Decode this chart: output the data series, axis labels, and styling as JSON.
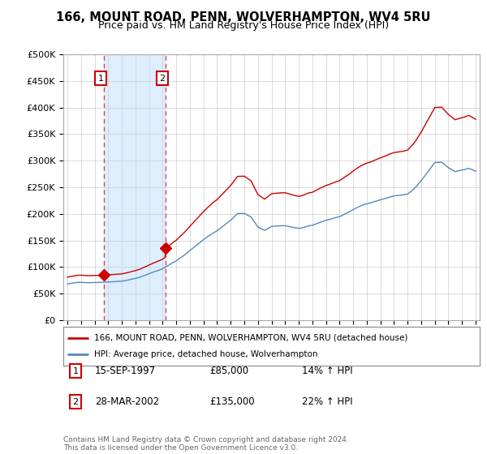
{
  "title": "166, MOUNT ROAD, PENN, WOLVERHAMPTON, WV4 5RU",
  "subtitle": "Price paid vs. HM Land Registry's House Price Index (HPI)",
  "legend_line1": "166, MOUNT ROAD, PENN, WOLVERHAMPTON, WV4 5RU (detached house)",
  "legend_line2": "HPI: Average price, detached house, Wolverhampton",
  "transaction1_label": "1",
  "transaction1_date": "15-SEP-1997",
  "transaction1_price": "£85,000",
  "transaction1_hpi": "14% ↑ HPI",
  "transaction1_year": 1997.71,
  "transaction1_value": 85000,
  "transaction2_label": "2",
  "transaction2_date": "28-MAR-2002",
  "transaction2_price": "£135,000",
  "transaction2_hpi": "22% ↑ HPI",
  "transaction2_year": 2002.23,
  "transaction2_value": 135000,
  "footer": "Contains HM Land Registry data © Crown copyright and database right 2024.\nThis data is licensed under the Open Government Licence v3.0.",
  "line_color_red": "#cc0000",
  "line_color_blue": "#5588bb",
  "shade_color": "#ddeeff",
  "background_color": "#ffffff",
  "grid_color": "#cccccc",
  "ylim": [
    0,
    500000
  ],
  "xlim_start": 1994.7,
  "xlim_end": 2025.3
}
